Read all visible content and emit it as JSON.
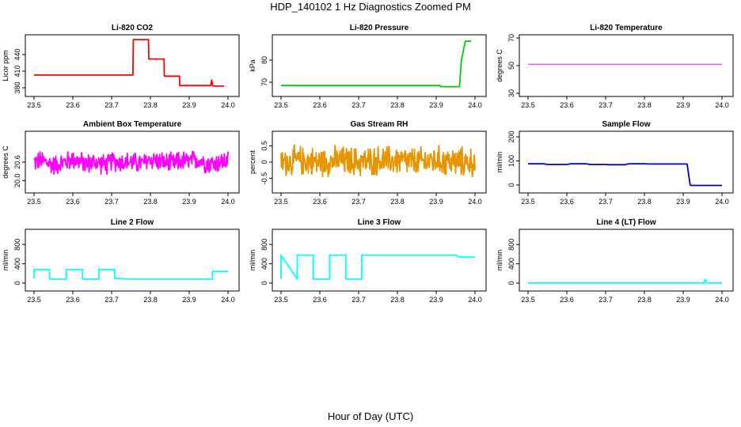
{
  "figure": {
    "title": "HDP_140102  1 Hz Diagnostics Zoomed PM",
    "xlabel": "Hour of Day (UTC)"
  },
  "chart_data": [
    {
      "type": "line",
      "title": "Li-820 CO2",
      "ylabel": "Licor ppm",
      "xlim": [
        23.5,
        24.0
      ],
      "ylim": [
        370,
        470
      ],
      "xticks": [
        23.5,
        23.6,
        23.7,
        23.8,
        23.9,
        24.0
      ],
      "xtick_labels": [
        "23.5",
        "23.6",
        "23.7",
        "23.8",
        "23.9",
        "24.0"
      ],
      "yticks": [
        380,
        410,
        440
      ],
      "ytick_labels": [
        "380",
        "410",
        "440"
      ],
      "color": "#ff0000",
      "series": [
        {
          "x": [
            23.5,
            23.755,
            23.756,
            23.795,
            23.796,
            23.835,
            23.836,
            23.875,
            23.876,
            23.955,
            23.958,
            23.96,
            23.962,
            23.99
          ],
          "y": [
            403,
            403,
            467,
            467,
            432,
            432,
            401,
            401,
            384,
            384,
            394,
            384,
            383,
            383
          ]
        }
      ]
    },
    {
      "type": "line",
      "title": "Li-820 Pressure",
      "ylabel": "kPa",
      "xlim": [
        23.5,
        24.0
      ],
      "ylim": [
        65,
        90
      ],
      "xticks": [
        23.5,
        23.6,
        23.7,
        23.8,
        23.9,
        24.0
      ],
      "xtick_labels": [
        "23.5",
        "23.6",
        "23.7",
        "23.8",
        "23.9",
        "24.0"
      ],
      "yticks": [
        70,
        80
      ],
      "ytick_labels": [
        "70",
        "80"
      ],
      "color": "#00cc00",
      "series": [
        {
          "x": [
            23.5,
            23.91,
            23.911,
            23.96,
            23.965,
            23.975,
            23.99
          ],
          "y": [
            68.5,
            68.5,
            68,
            68,
            80,
            88.5,
            88.5
          ]
        }
      ]
    },
    {
      "type": "line",
      "title": "Li-820 Temperature",
      "ylabel": "degrees C",
      "xlim": [
        23.5,
        24.0
      ],
      "ylim": [
        30,
        70
      ],
      "xticks": [
        23.5,
        23.6,
        23.7,
        23.8,
        23.9,
        24.0
      ],
      "xtick_labels": [
        "23.5",
        "23.6",
        "23.7",
        "23.8",
        "23.9",
        "24.0"
      ],
      "yticks": [
        30,
        50,
        70
      ],
      "ytick_labels": [
        "30",
        "50",
        "70"
      ],
      "color": "#ff00ff",
      "series": [
        {
          "x": [
            23.5,
            24.0
          ],
          "y": [
            51,
            51
          ]
        }
      ]
    },
    {
      "type": "line",
      "title": "Ambient Box Temperature",
      "ylabel": "degrees C",
      "xlim": [
        23.5,
        24.0
      ],
      "ylim": [
        19.7,
        21.5
      ],
      "xticks": [
        23.5,
        23.6,
        23.7,
        23.8,
        23.9,
        24.0
      ],
      "xtick_labels": [
        "23.5",
        "23.6",
        "23.7",
        "23.8",
        "23.9",
        "24.0"
      ],
      "yticks": [
        20.0,
        20.6
      ],
      "ytick_labels": [
        "20.0",
        "20.6"
      ],
      "color": "#ff00ff",
      "series": [
        {
          "x": [
            23.5,
            23.52,
            23.55,
            23.58,
            23.6,
            23.63,
            23.66,
            23.69,
            23.7,
            23.72,
            23.75,
            23.78,
            23.8,
            23.83,
            23.86,
            23.88,
            23.9,
            23.92,
            23.95,
            23.98,
            24.0
          ],
          "y": [
            20.6,
            20.65,
            20.5,
            20.6,
            20.7,
            20.55,
            20.6,
            20.5,
            20.65,
            20.6,
            20.6,
            20.55,
            20.7,
            20.6,
            20.55,
            20.65,
            20.6,
            20.7,
            20.55,
            20.6,
            20.65
          ],
          "noise": 0.55
        }
      ]
    },
    {
      "type": "line",
      "title": "Gas Stream RH",
      "ylabel": "percent",
      "xlim": [
        23.5,
        24.0
      ],
      "ylim": [
        -0.85,
        0.85
      ],
      "xticks": [
        23.5,
        23.6,
        23.7,
        23.8,
        23.9,
        24.0
      ],
      "xtick_labels": [
        "23.5",
        "23.6",
        "23.7",
        "23.8",
        "23.9",
        "24.0"
      ],
      "yticks": [
        -0.5,
        0,
        0.5
      ],
      "ytick_labels": [
        "-0.5",
        "0",
        "0.5"
      ],
      "color": "#e69500",
      "series": [
        {
          "x": [
            23.5,
            23.55,
            23.6,
            23.65,
            23.7,
            23.75,
            23.8,
            23.85,
            23.9,
            23.95,
            24.0
          ],
          "y": [
            0.0,
            0.05,
            0.0,
            0.05,
            0.0,
            0.05,
            0.05,
            0.0,
            0.05,
            0.0,
            0.0
          ],
          "noise": 0.75
        }
      ]
    },
    {
      "type": "line",
      "title": "Sample Flow",
      "ylabel": "ml/min",
      "xlim": [
        23.5,
        24.0
      ],
      "ylim": [
        -20,
        210
      ],
      "xticks": [
        23.5,
        23.6,
        23.7,
        23.8,
        23.9,
        24.0
      ],
      "xtick_labels": [
        "23.5",
        "23.6",
        "23.7",
        "23.8",
        "23.9",
        "24.0"
      ],
      "yticks": [
        0,
        100,
        200
      ],
      "ytick_labels": [
        "0",
        "100",
        "200"
      ],
      "color": "#0000cc",
      "series": [
        {
          "x": [
            23.5,
            23.54,
            23.55,
            23.6,
            23.61,
            23.65,
            23.66,
            23.7,
            23.71,
            23.75,
            23.76,
            23.8,
            23.81,
            23.91,
            23.918,
            23.92,
            24.0
          ],
          "y": [
            88,
            88,
            85,
            85,
            88,
            88,
            85,
            85,
            84,
            84,
            88,
            88,
            87,
            87,
            0,
            -2,
            -2
          ]
        }
      ]
    },
    {
      "type": "line",
      "title": "Line 2 Flow",
      "ylabel": "ml/min",
      "xlim": [
        23.5,
        24.0
      ],
      "ylim": [
        -100,
        1050
      ],
      "xticks": [
        23.5,
        23.6,
        23.7,
        23.8,
        23.9,
        24.0
      ],
      "xtick_labels": [
        "23.5",
        "23.6",
        "23.7",
        "23.8",
        "23.9",
        "24.0"
      ],
      "yticks": [
        0,
        400,
        800
      ],
      "ytick_labels": [
        "0",
        "400",
        "800"
      ],
      "color": "#00ffff",
      "series": [
        {
          "x": [
            23.5,
            23.5,
            23.54,
            23.54,
            23.583,
            23.583,
            23.625,
            23.625,
            23.667,
            23.667,
            23.708,
            23.708,
            23.75,
            23.96,
            23.96,
            24.0
          ],
          "y": [
            100,
            280,
            280,
            80,
            80,
            280,
            280,
            80,
            80,
            280,
            280,
            100,
            80,
            80,
            240,
            240
          ]
        }
      ]
    },
    {
      "type": "line",
      "title": "Line 3 Flow",
      "ylabel": "ml/min",
      "xlim": [
        23.5,
        24.0
      ],
      "ylim": [
        -100,
        1050
      ],
      "xticks": [
        23.5,
        23.6,
        23.7,
        23.8,
        23.9,
        24.0
      ],
      "xtick_labels": [
        "23.5",
        "23.6",
        "23.7",
        "23.8",
        "23.9",
        "24.0"
      ],
      "yticks": [
        0,
        400,
        800
      ],
      "ytick_labels": [
        "0",
        "400",
        "800"
      ],
      "color": "#00ffff",
      "series": [
        {
          "x": [
            23.5,
            23.5,
            23.542,
            23.542,
            23.583,
            23.583,
            23.625,
            23.625,
            23.667,
            23.667,
            23.708,
            23.708,
            23.95,
            23.96,
            24.0
          ],
          "y": [
            80,
            580,
            80,
            580,
            580,
            80,
            80,
            580,
            580,
            80,
            80,
            580,
            580,
            540,
            540
          ]
        }
      ]
    },
    {
      "type": "line",
      "title": "Line 4 (LT) Flow",
      "ylabel": "ml/min",
      "xlim": [
        23.5,
        24.0
      ],
      "ylim": [
        -100,
        1050
      ],
      "xticks": [
        23.5,
        23.6,
        23.7,
        23.8,
        23.9,
        24.0
      ],
      "xtick_labels": [
        "23.5",
        "23.6",
        "23.7",
        "23.8",
        "23.9",
        "24.0"
      ],
      "yticks": [
        0,
        400,
        800
      ],
      "ytick_labels": [
        "0",
        "400",
        "800"
      ],
      "color": "#00ffff",
      "series": [
        {
          "x": [
            23.5,
            23.955,
            23.956,
            23.958,
            23.96,
            24.0
          ],
          "y": [
            0,
            0,
            70,
            70,
            0,
            0
          ]
        }
      ]
    }
  ]
}
